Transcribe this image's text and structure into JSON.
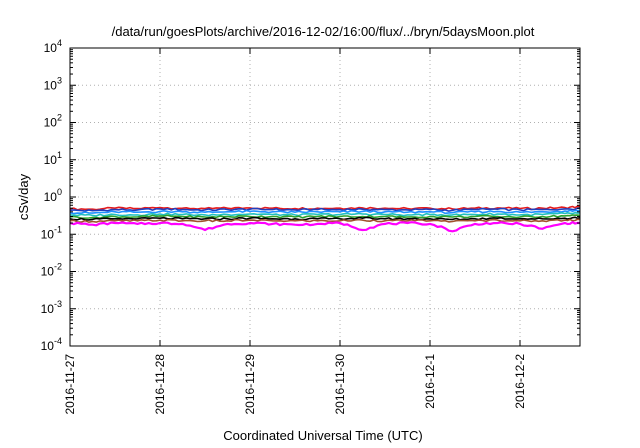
{
  "chart_data": {
    "type": "line",
    "title": "/data/run/goesPlots/archive/2016-12-02/16:00/flux/../bryn/5daysMoon.plot",
    "xlabel": "Coordinated Universal Time (UTC)",
    "ylabel": "cSv/day",
    "yscale": "log",
    "ylim": [
      0.0001,
      10000
    ],
    "xlim": [
      "2016-11-27",
      "2016-12-02 16:00"
    ],
    "grid": true,
    "x_ticks": [
      "2016-11-27",
      "2016-11-28",
      "2016-11-29",
      "2016-11-30",
      "2016-12-1",
      "2016-12-2"
    ],
    "y_ticks": [
      {
        "base": "10",
        "exp": "-4"
      },
      {
        "base": "10",
        "exp": "-3"
      },
      {
        "base": "10",
        "exp": "-2"
      },
      {
        "base": "10",
        "exp": "-1"
      },
      {
        "base": "10",
        "exp": "0"
      },
      {
        "base": "10",
        "exp": "1"
      },
      {
        "base": "10",
        "exp": "2"
      },
      {
        "base": "10",
        "exp": "3"
      },
      {
        "base": "10",
        "exp": "4"
      }
    ],
    "x_hours": [
      0,
      6,
      12,
      18,
      24,
      30,
      36,
      42,
      48,
      54,
      60,
      66,
      72,
      78,
      84,
      90,
      96,
      102,
      108,
      114,
      120,
      126,
      132,
      136
    ],
    "series": [
      {
        "color": "#e41a1c",
        "values": [
          0.48,
          0.47,
          0.5,
          0.49,
          0.52,
          0.5,
          0.49,
          0.5,
          0.51,
          0.5,
          0.49,
          0.5,
          0.5,
          0.51,
          0.5,
          0.49,
          0.5,
          0.48,
          0.5,
          0.51,
          0.49,
          0.5,
          0.52,
          0.55
        ]
      },
      {
        "color": "#1f3fbf",
        "values": [
          0.44,
          0.43,
          0.46,
          0.45,
          0.48,
          0.46,
          0.45,
          0.46,
          0.47,
          0.46,
          0.45,
          0.46,
          0.46,
          0.47,
          0.46,
          0.45,
          0.46,
          0.44,
          0.46,
          0.47,
          0.45,
          0.46,
          0.48,
          0.5
        ]
      },
      {
        "color": "#1e90ff",
        "values": [
          0.38,
          0.37,
          0.4,
          0.39,
          0.41,
          0.4,
          0.39,
          0.4,
          0.41,
          0.4,
          0.39,
          0.4,
          0.4,
          0.41,
          0.4,
          0.39,
          0.4,
          0.38,
          0.4,
          0.41,
          0.39,
          0.4,
          0.42,
          0.44
        ]
      },
      {
        "color": "#20c0c0",
        "values": [
          0.33,
          0.32,
          0.34,
          0.33,
          0.35,
          0.34,
          0.33,
          0.34,
          0.35,
          0.34,
          0.33,
          0.34,
          0.34,
          0.35,
          0.34,
          0.33,
          0.34,
          0.33,
          0.34,
          0.35,
          0.33,
          0.34,
          0.36,
          0.37
        ]
      },
      {
        "color": "#2ca02c",
        "values": [
          0.29,
          0.28,
          0.3,
          0.29,
          0.31,
          0.3,
          0.29,
          0.3,
          0.3,
          0.3,
          0.29,
          0.3,
          0.3,
          0.3,
          0.3,
          0.29,
          0.3,
          0.29,
          0.3,
          0.3,
          0.29,
          0.3,
          0.31,
          0.32
        ]
      },
      {
        "color": "#000000",
        "values": [
          0.26,
          0.25,
          0.26,
          0.26,
          0.27,
          0.26,
          0.26,
          0.26,
          0.27,
          0.26,
          0.26,
          0.26,
          0.26,
          0.27,
          0.26,
          0.26,
          0.26,
          0.25,
          0.26,
          0.27,
          0.26,
          0.26,
          0.27,
          0.28
        ]
      },
      {
        "color": "#a0522d",
        "values": [
          0.23,
          0.22,
          0.23,
          0.23,
          0.24,
          0.23,
          0.23,
          0.23,
          0.24,
          0.23,
          0.23,
          0.23,
          0.23,
          0.24,
          0.23,
          0.23,
          0.23,
          0.22,
          0.23,
          0.24,
          0.23,
          0.23,
          0.24,
          0.25
        ]
      },
      {
        "color": "#ff00ff",
        "values": [
          0.2,
          0.18,
          0.2,
          0.19,
          0.2,
          0.19,
          0.13,
          0.19,
          0.2,
          0.19,
          0.18,
          0.19,
          0.2,
          0.13,
          0.19,
          0.2,
          0.19,
          0.12,
          0.19,
          0.2,
          0.19,
          0.14,
          0.2,
          0.2
        ]
      }
    ]
  }
}
